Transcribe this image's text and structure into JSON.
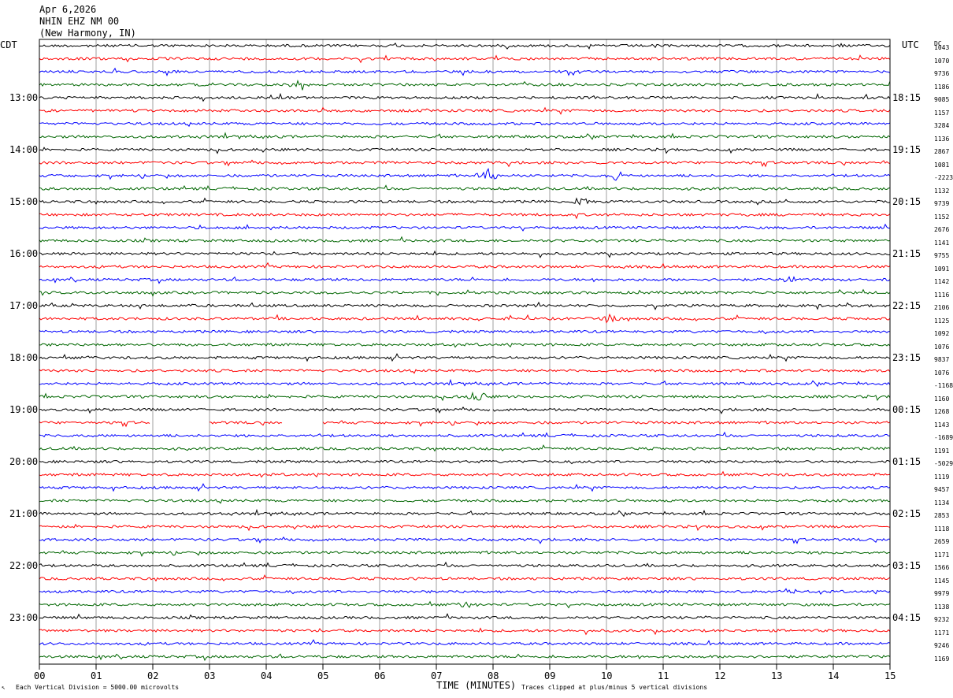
{
  "header": {
    "date": "Apr 6,2026",
    "station": "NHIN EHZ NM 00",
    "location": "(New Harmony, IN)"
  },
  "left_tz": "CDT",
  "right_tz": "UTC",
  "dc_label": "DC",
  "footer": {
    "scale_note": "Each Vertical Division = 5000.00 microvolts",
    "x_title": "TIME (MINUTES)",
    "clip_note": "Traces clipped at plus/minus 5 vertical divisions",
    "mark": "↖"
  },
  "colors": {
    "trace_cycle": [
      "#000000",
      "#ff0000",
      "#0000ff",
      "#006600"
    ],
    "grid": "#888888",
    "frame": "#000000"
  },
  "chart_data": {
    "type": "line",
    "title": "NHIN EHZ NM 00",
    "xlabel": "TIME (MINUTES)",
    "xlim": [
      0,
      15
    ],
    "x_ticks": [
      "00",
      "01",
      "02",
      "03",
      "04",
      "05",
      "06",
      "07",
      "08",
      "09",
      "10",
      "11",
      "12",
      "13",
      "14",
      "15"
    ],
    "left_hour_labels": [
      "13:00",
      "14:00",
      "15:00",
      "16:00",
      "17:00",
      "18:00",
      "19:00",
      "20:00",
      "21:00",
      "22:00",
      "23:00"
    ],
    "right_hour_labels": [
      "18:15",
      "19:15",
      "20:15",
      "21:15",
      "22:15",
      "23:15",
      "00:15",
      "01:15",
      "02:15",
      "03:15",
      "04:15"
    ],
    "dc_offsets": [
      "1043",
      "1070",
      "9736",
      "1186",
      "9085",
      "1157",
      "3284",
      "1136",
      "2867",
      "1081",
      "-2223",
      "1132",
      "9739",
      "1152",
      "2676",
      "1141",
      "9755",
      "1091",
      "1142",
      "1116",
      "2106",
      "1125",
      "1092",
      "1076",
      "9837",
      "1076",
      "-1168",
      "1160",
      "1268",
      "1143",
      "-1689",
      "1191",
      "-5029",
      "1119",
      "9457",
      "1134",
      "2853",
      "1118",
      "2659",
      "1171",
      "1566",
      "1145",
      "9979",
      "1138",
      "9232",
      "1171",
      "9246",
      "1169"
    ],
    "gaps": [
      {
        "trace": 29,
        "from_min": 1.95,
        "to_min": 3.0
      },
      {
        "trace": 29,
        "from_min": 4.3,
        "to_min": 5.0
      },
      {
        "trace": 28,
        "from_min": 7.95,
        "to_min": 8.0
      }
    ],
    "events": [
      {
        "trace": 3,
        "at_min": 4.6,
        "amp": 0.55
      },
      {
        "trace": 10,
        "at_min": 7.9,
        "amp": 0.9
      },
      {
        "trace": 10,
        "at_min": 10.2,
        "amp": 0.5
      },
      {
        "trace": 12,
        "at_min": 9.5,
        "amp": 0.45
      },
      {
        "trace": 18,
        "at_min": 13.2,
        "amp": 0.45
      },
      {
        "trace": 21,
        "at_min": 10.0,
        "amp": 0.45
      },
      {
        "trace": 27,
        "at_min": 7.7,
        "amp": 0.7
      },
      {
        "trace": 42,
        "at_min": 13.2,
        "amp": 0.35
      },
      {
        "trace": 43,
        "at_min": 7.5,
        "amp": 0.35
      }
    ]
  }
}
